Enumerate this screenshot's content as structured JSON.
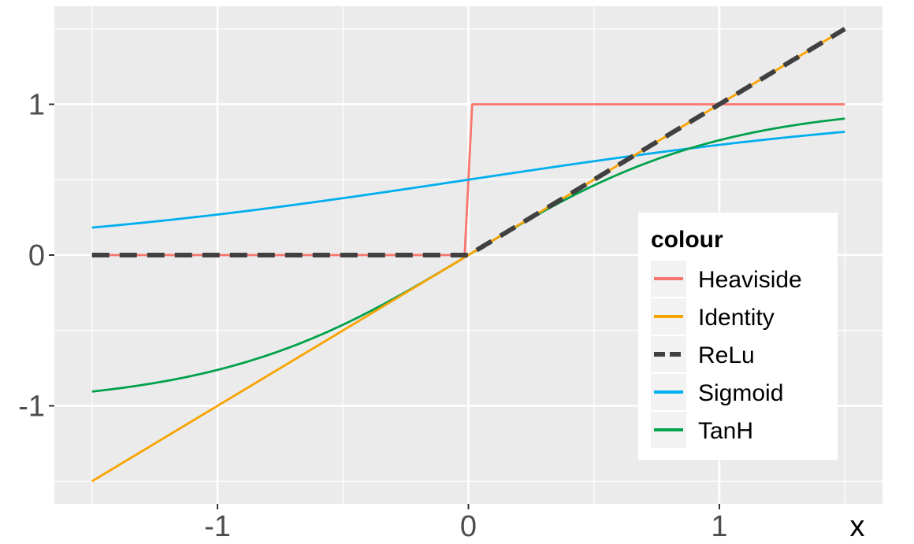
{
  "chart_data": {
    "type": "line",
    "title": "",
    "xlabel": "x",
    "ylabel": "",
    "xlim": [
      -1.65,
      1.65
    ],
    "ylim": [
      -1.65,
      1.65
    ],
    "x_ticks": [
      -1,
      0,
      1
    ],
    "x_tick_labels": [
      "-1",
      "0",
      "1"
    ],
    "y_ticks": [
      -1,
      0,
      1
    ],
    "y_tick_labels": [
      "-1",
      "0",
      "1"
    ],
    "x_range": [
      -1.5,
      1.5
    ],
    "grid": true,
    "legend": {
      "title": "colour",
      "position": "right-inside"
    },
    "series": [
      {
        "name": "Heaviside",
        "function": "heaviside",
        "color": "#F8766D",
        "dash": "solid"
      },
      {
        "name": "Identity",
        "function": "identity",
        "color": "#F8A300",
        "dash": "solid"
      },
      {
        "name": "ReLu",
        "function": "relu",
        "color": "#404040",
        "dash": "dashed"
      },
      {
        "name": "Sigmoid",
        "function": "sigmoid",
        "color": "#00AEEF",
        "dash": "solid"
      },
      {
        "name": "TanH",
        "function": "tanh",
        "color": "#00A14B",
        "dash": "solid"
      }
    ]
  }
}
